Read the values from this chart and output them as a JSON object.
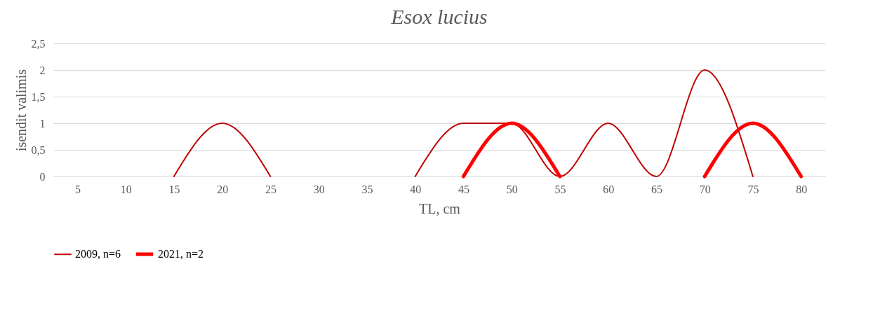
{
  "chart_data": {
    "type": "line",
    "title": "Esox lucius",
    "xlabel": "TL, cm",
    "ylabel": "isendit valimis",
    "categories": [
      "5",
      "10",
      "15",
      "20",
      "25",
      "30",
      "35",
      "40",
      "45",
      "50",
      "55",
      "60",
      "65",
      "70",
      "75",
      "80"
    ],
    "series": [
      {
        "name": "2009, n=6",
        "color": "#c00000",
        "values": [
          null,
          null,
          0,
          1,
          0,
          null,
          null,
          0,
          1,
          1,
          0,
          1,
          0,
          2,
          0,
          null
        ]
      },
      {
        "name": "2021, n=2",
        "color": "#ff0000",
        "values": [
          null,
          null,
          null,
          null,
          null,
          null,
          null,
          null,
          0,
          1,
          0,
          null,
          null,
          0,
          1,
          0
        ]
      }
    ],
    "ylim": [
      0,
      2.5
    ],
    "yticks": [
      0,
      {
        "value": 0.5,
        "label": "0,5"
      },
      1,
      {
        "value": 1.5,
        "label": "1,5"
      },
      2,
      {
        "value": 2.5,
        "label": "2,5"
      }
    ],
    "grid": "y",
    "legend": "bottom",
    "marker": "none",
    "line_style": "solid"
  }
}
